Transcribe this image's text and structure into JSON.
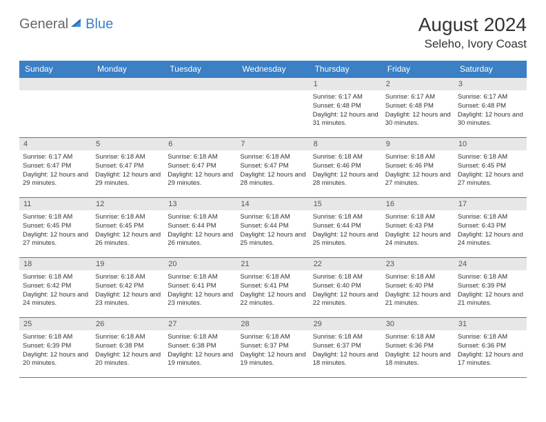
{
  "brand": {
    "part1": "General",
    "part2": "Blue"
  },
  "title": "August 2024",
  "location": "Seleho, Ivory Coast",
  "colors": {
    "header_bg": "#3b7fc4",
    "header_text": "#ffffff",
    "daynum_bg": "#e7e7e7",
    "border": "#3b7fc4",
    "text": "#333333"
  },
  "day_names": [
    "Sunday",
    "Monday",
    "Tuesday",
    "Wednesday",
    "Thursday",
    "Friday",
    "Saturday"
  ],
  "weeks": [
    [
      {
        "n": "",
        "rise": "",
        "set": "",
        "day": ""
      },
      {
        "n": "",
        "rise": "",
        "set": "",
        "day": ""
      },
      {
        "n": "",
        "rise": "",
        "set": "",
        "day": ""
      },
      {
        "n": "",
        "rise": "",
        "set": "",
        "day": ""
      },
      {
        "n": "1",
        "rise": "Sunrise: 6:17 AM",
        "set": "Sunset: 6:48 PM",
        "day": "Daylight: 12 hours and 31 minutes."
      },
      {
        "n": "2",
        "rise": "Sunrise: 6:17 AM",
        "set": "Sunset: 6:48 PM",
        "day": "Daylight: 12 hours and 30 minutes."
      },
      {
        "n": "3",
        "rise": "Sunrise: 6:17 AM",
        "set": "Sunset: 6:48 PM",
        "day": "Daylight: 12 hours and 30 minutes."
      }
    ],
    [
      {
        "n": "4",
        "rise": "Sunrise: 6:17 AM",
        "set": "Sunset: 6:47 PM",
        "day": "Daylight: 12 hours and 29 minutes."
      },
      {
        "n": "5",
        "rise": "Sunrise: 6:18 AM",
        "set": "Sunset: 6:47 PM",
        "day": "Daylight: 12 hours and 29 minutes."
      },
      {
        "n": "6",
        "rise": "Sunrise: 6:18 AM",
        "set": "Sunset: 6:47 PM",
        "day": "Daylight: 12 hours and 29 minutes."
      },
      {
        "n": "7",
        "rise": "Sunrise: 6:18 AM",
        "set": "Sunset: 6:47 PM",
        "day": "Daylight: 12 hours and 28 minutes."
      },
      {
        "n": "8",
        "rise": "Sunrise: 6:18 AM",
        "set": "Sunset: 6:46 PM",
        "day": "Daylight: 12 hours and 28 minutes."
      },
      {
        "n": "9",
        "rise": "Sunrise: 6:18 AM",
        "set": "Sunset: 6:46 PM",
        "day": "Daylight: 12 hours and 27 minutes."
      },
      {
        "n": "10",
        "rise": "Sunrise: 6:18 AM",
        "set": "Sunset: 6:45 PM",
        "day": "Daylight: 12 hours and 27 minutes."
      }
    ],
    [
      {
        "n": "11",
        "rise": "Sunrise: 6:18 AM",
        "set": "Sunset: 6:45 PM",
        "day": "Daylight: 12 hours and 27 minutes."
      },
      {
        "n": "12",
        "rise": "Sunrise: 6:18 AM",
        "set": "Sunset: 6:45 PM",
        "day": "Daylight: 12 hours and 26 minutes."
      },
      {
        "n": "13",
        "rise": "Sunrise: 6:18 AM",
        "set": "Sunset: 6:44 PM",
        "day": "Daylight: 12 hours and 26 minutes."
      },
      {
        "n": "14",
        "rise": "Sunrise: 6:18 AM",
        "set": "Sunset: 6:44 PM",
        "day": "Daylight: 12 hours and 25 minutes."
      },
      {
        "n": "15",
        "rise": "Sunrise: 6:18 AM",
        "set": "Sunset: 6:44 PM",
        "day": "Daylight: 12 hours and 25 minutes."
      },
      {
        "n": "16",
        "rise": "Sunrise: 6:18 AM",
        "set": "Sunset: 6:43 PM",
        "day": "Daylight: 12 hours and 24 minutes."
      },
      {
        "n": "17",
        "rise": "Sunrise: 6:18 AM",
        "set": "Sunset: 6:43 PM",
        "day": "Daylight: 12 hours and 24 minutes."
      }
    ],
    [
      {
        "n": "18",
        "rise": "Sunrise: 6:18 AM",
        "set": "Sunset: 6:42 PM",
        "day": "Daylight: 12 hours and 24 minutes."
      },
      {
        "n": "19",
        "rise": "Sunrise: 6:18 AM",
        "set": "Sunset: 6:42 PM",
        "day": "Daylight: 12 hours and 23 minutes."
      },
      {
        "n": "20",
        "rise": "Sunrise: 6:18 AM",
        "set": "Sunset: 6:41 PM",
        "day": "Daylight: 12 hours and 23 minutes."
      },
      {
        "n": "21",
        "rise": "Sunrise: 6:18 AM",
        "set": "Sunset: 6:41 PM",
        "day": "Daylight: 12 hours and 22 minutes."
      },
      {
        "n": "22",
        "rise": "Sunrise: 6:18 AM",
        "set": "Sunset: 6:40 PM",
        "day": "Daylight: 12 hours and 22 minutes."
      },
      {
        "n": "23",
        "rise": "Sunrise: 6:18 AM",
        "set": "Sunset: 6:40 PM",
        "day": "Daylight: 12 hours and 21 minutes."
      },
      {
        "n": "24",
        "rise": "Sunrise: 6:18 AM",
        "set": "Sunset: 6:39 PM",
        "day": "Daylight: 12 hours and 21 minutes."
      }
    ],
    [
      {
        "n": "25",
        "rise": "Sunrise: 6:18 AM",
        "set": "Sunset: 6:39 PM",
        "day": "Daylight: 12 hours and 20 minutes."
      },
      {
        "n": "26",
        "rise": "Sunrise: 6:18 AM",
        "set": "Sunset: 6:38 PM",
        "day": "Daylight: 12 hours and 20 minutes."
      },
      {
        "n": "27",
        "rise": "Sunrise: 6:18 AM",
        "set": "Sunset: 6:38 PM",
        "day": "Daylight: 12 hours and 19 minutes."
      },
      {
        "n": "28",
        "rise": "Sunrise: 6:18 AM",
        "set": "Sunset: 6:37 PM",
        "day": "Daylight: 12 hours and 19 minutes."
      },
      {
        "n": "29",
        "rise": "Sunrise: 6:18 AM",
        "set": "Sunset: 6:37 PM",
        "day": "Daylight: 12 hours and 18 minutes."
      },
      {
        "n": "30",
        "rise": "Sunrise: 6:18 AM",
        "set": "Sunset: 6:36 PM",
        "day": "Daylight: 12 hours and 18 minutes."
      },
      {
        "n": "31",
        "rise": "Sunrise: 6:18 AM",
        "set": "Sunset: 6:36 PM",
        "day": "Daylight: 12 hours and 17 minutes."
      }
    ]
  ]
}
